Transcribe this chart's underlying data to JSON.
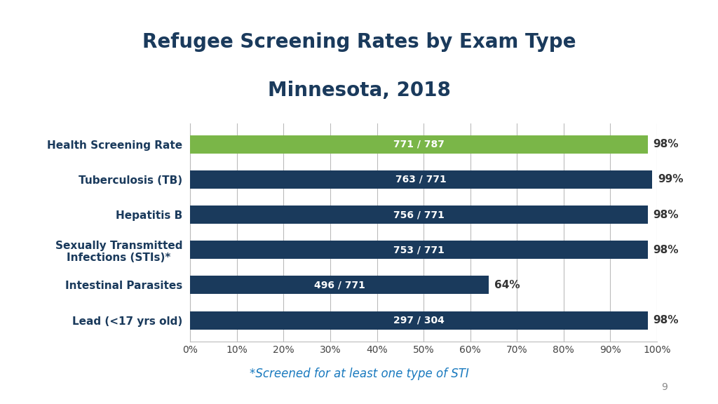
{
  "title_line1": "Refugee Screening Rates by Exam Type",
  "title_line2": "Minnesota, 2018",
  "title_color": "#1a3a5c",
  "categories": [
    "Lead (<17 yrs old)",
    "Intestinal Parasites",
    "Sexually Transmitted\nInfections (STIs)*",
    "Hepatitis B",
    "Tuberculosis (TB)",
    "Health Screening Rate"
  ],
  "values": [
    0.98,
    0.64,
    0.98,
    0.98,
    0.99,
    0.98
  ],
  "bar_labels": [
    "297 / 304",
    "496 / 771",
    "753 / 771",
    "756 / 771",
    "763 / 771",
    "771 / 787"
  ],
  "pct_labels": [
    "98%",
    "64%",
    "98%",
    "98%",
    "99%",
    "98%"
  ],
  "bar_colors": [
    "#1a3a5c",
    "#1a3a5c",
    "#1a3a5c",
    "#1a3a5c",
    "#1a3a5c",
    "#7ab648"
  ],
  "xlim": [
    0,
    1.0
  ],
  "xticks": [
    0.0,
    0.1,
    0.2,
    0.3,
    0.4,
    0.5,
    0.6,
    0.7,
    0.8,
    0.9,
    1.0
  ],
  "xticklabels": [
    "0%",
    "10%",
    "20%",
    "30%",
    "40%",
    "50%",
    "60%",
    "70%",
    "80%",
    "90%",
    "100%"
  ],
  "footnote": "*Screened for at least one type of STI",
  "footnote_color": "#1a7abf",
  "background_color": "#ffffff",
  "bar_label_color": "#ffffff",
  "bar_label_fontsize": 10,
  "pct_label_color": "#333333",
  "pct_label_fontsize": 11,
  "grid_color": "#bbbbbb",
  "page_number": "9"
}
